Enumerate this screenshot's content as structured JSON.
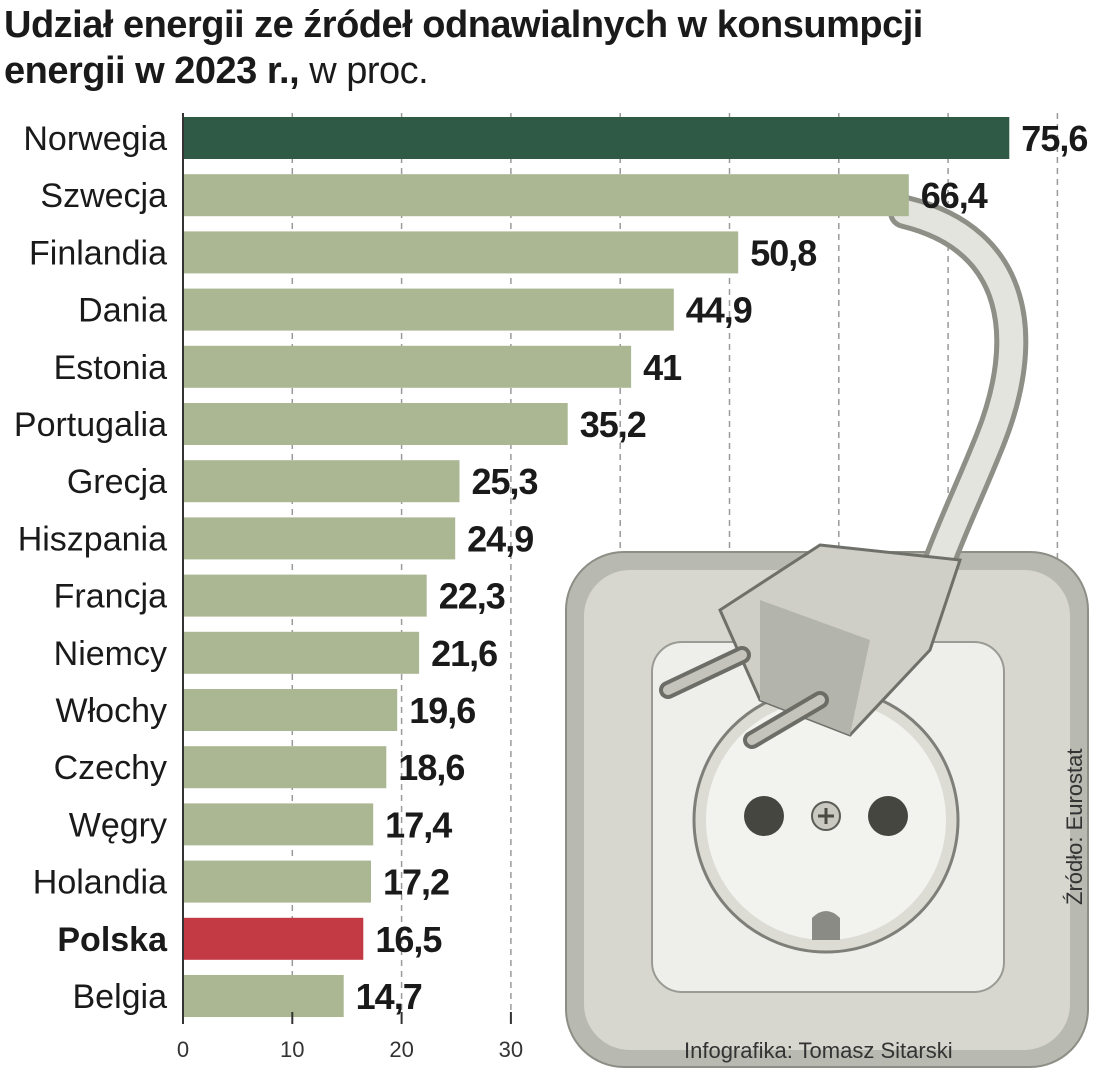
{
  "chart_data": {
    "type": "bar",
    "orientation": "horizontal",
    "title": "Udział energii ze źródeł odnawialnych w konsumpcji energii w 2023 r.,",
    "title_unit": "w proc.",
    "categories": [
      "Norwegia",
      "Szwecja",
      "Finlandia",
      "Dania",
      "Estonia",
      "Portugalia",
      "Grecja",
      "Hiszpania",
      "Francja",
      "Niemcy",
      "Włochy",
      "Czechy",
      "Węgry",
      "Holandia",
      "Polska",
      "Belgia"
    ],
    "values": [
      75.6,
      66.4,
      50.8,
      44.9,
      41,
      35.2,
      25.3,
      24.9,
      22.3,
      21.6,
      19.6,
      18.6,
      17.4,
      17.2,
      16.5,
      14.7
    ],
    "value_labels": [
      "75,6",
      "66,4",
      "50,8",
      "44,9",
      "41",
      "35,2",
      "25,3",
      "24,9",
      "22,3",
      "21,6",
      "19,6",
      "18,6",
      "17,4",
      "17,2",
      "16,5",
      "14,7"
    ],
    "highlight": {
      "Norwegia": "#2f5a45",
      "Polska": "#c33a45"
    },
    "bar_color": "#aab792",
    "x_ticks": [
      0,
      10,
      20,
      30
    ],
    "x_tick_labels": [
      "0",
      "10",
      "20",
      "30"
    ],
    "grid_values": [
      10,
      20,
      30,
      40,
      50,
      60,
      70,
      80
    ],
    "grid": true
  },
  "source": "Źródło: Eurostat",
  "credit": "Infografika: Tomasz Sitarski"
}
